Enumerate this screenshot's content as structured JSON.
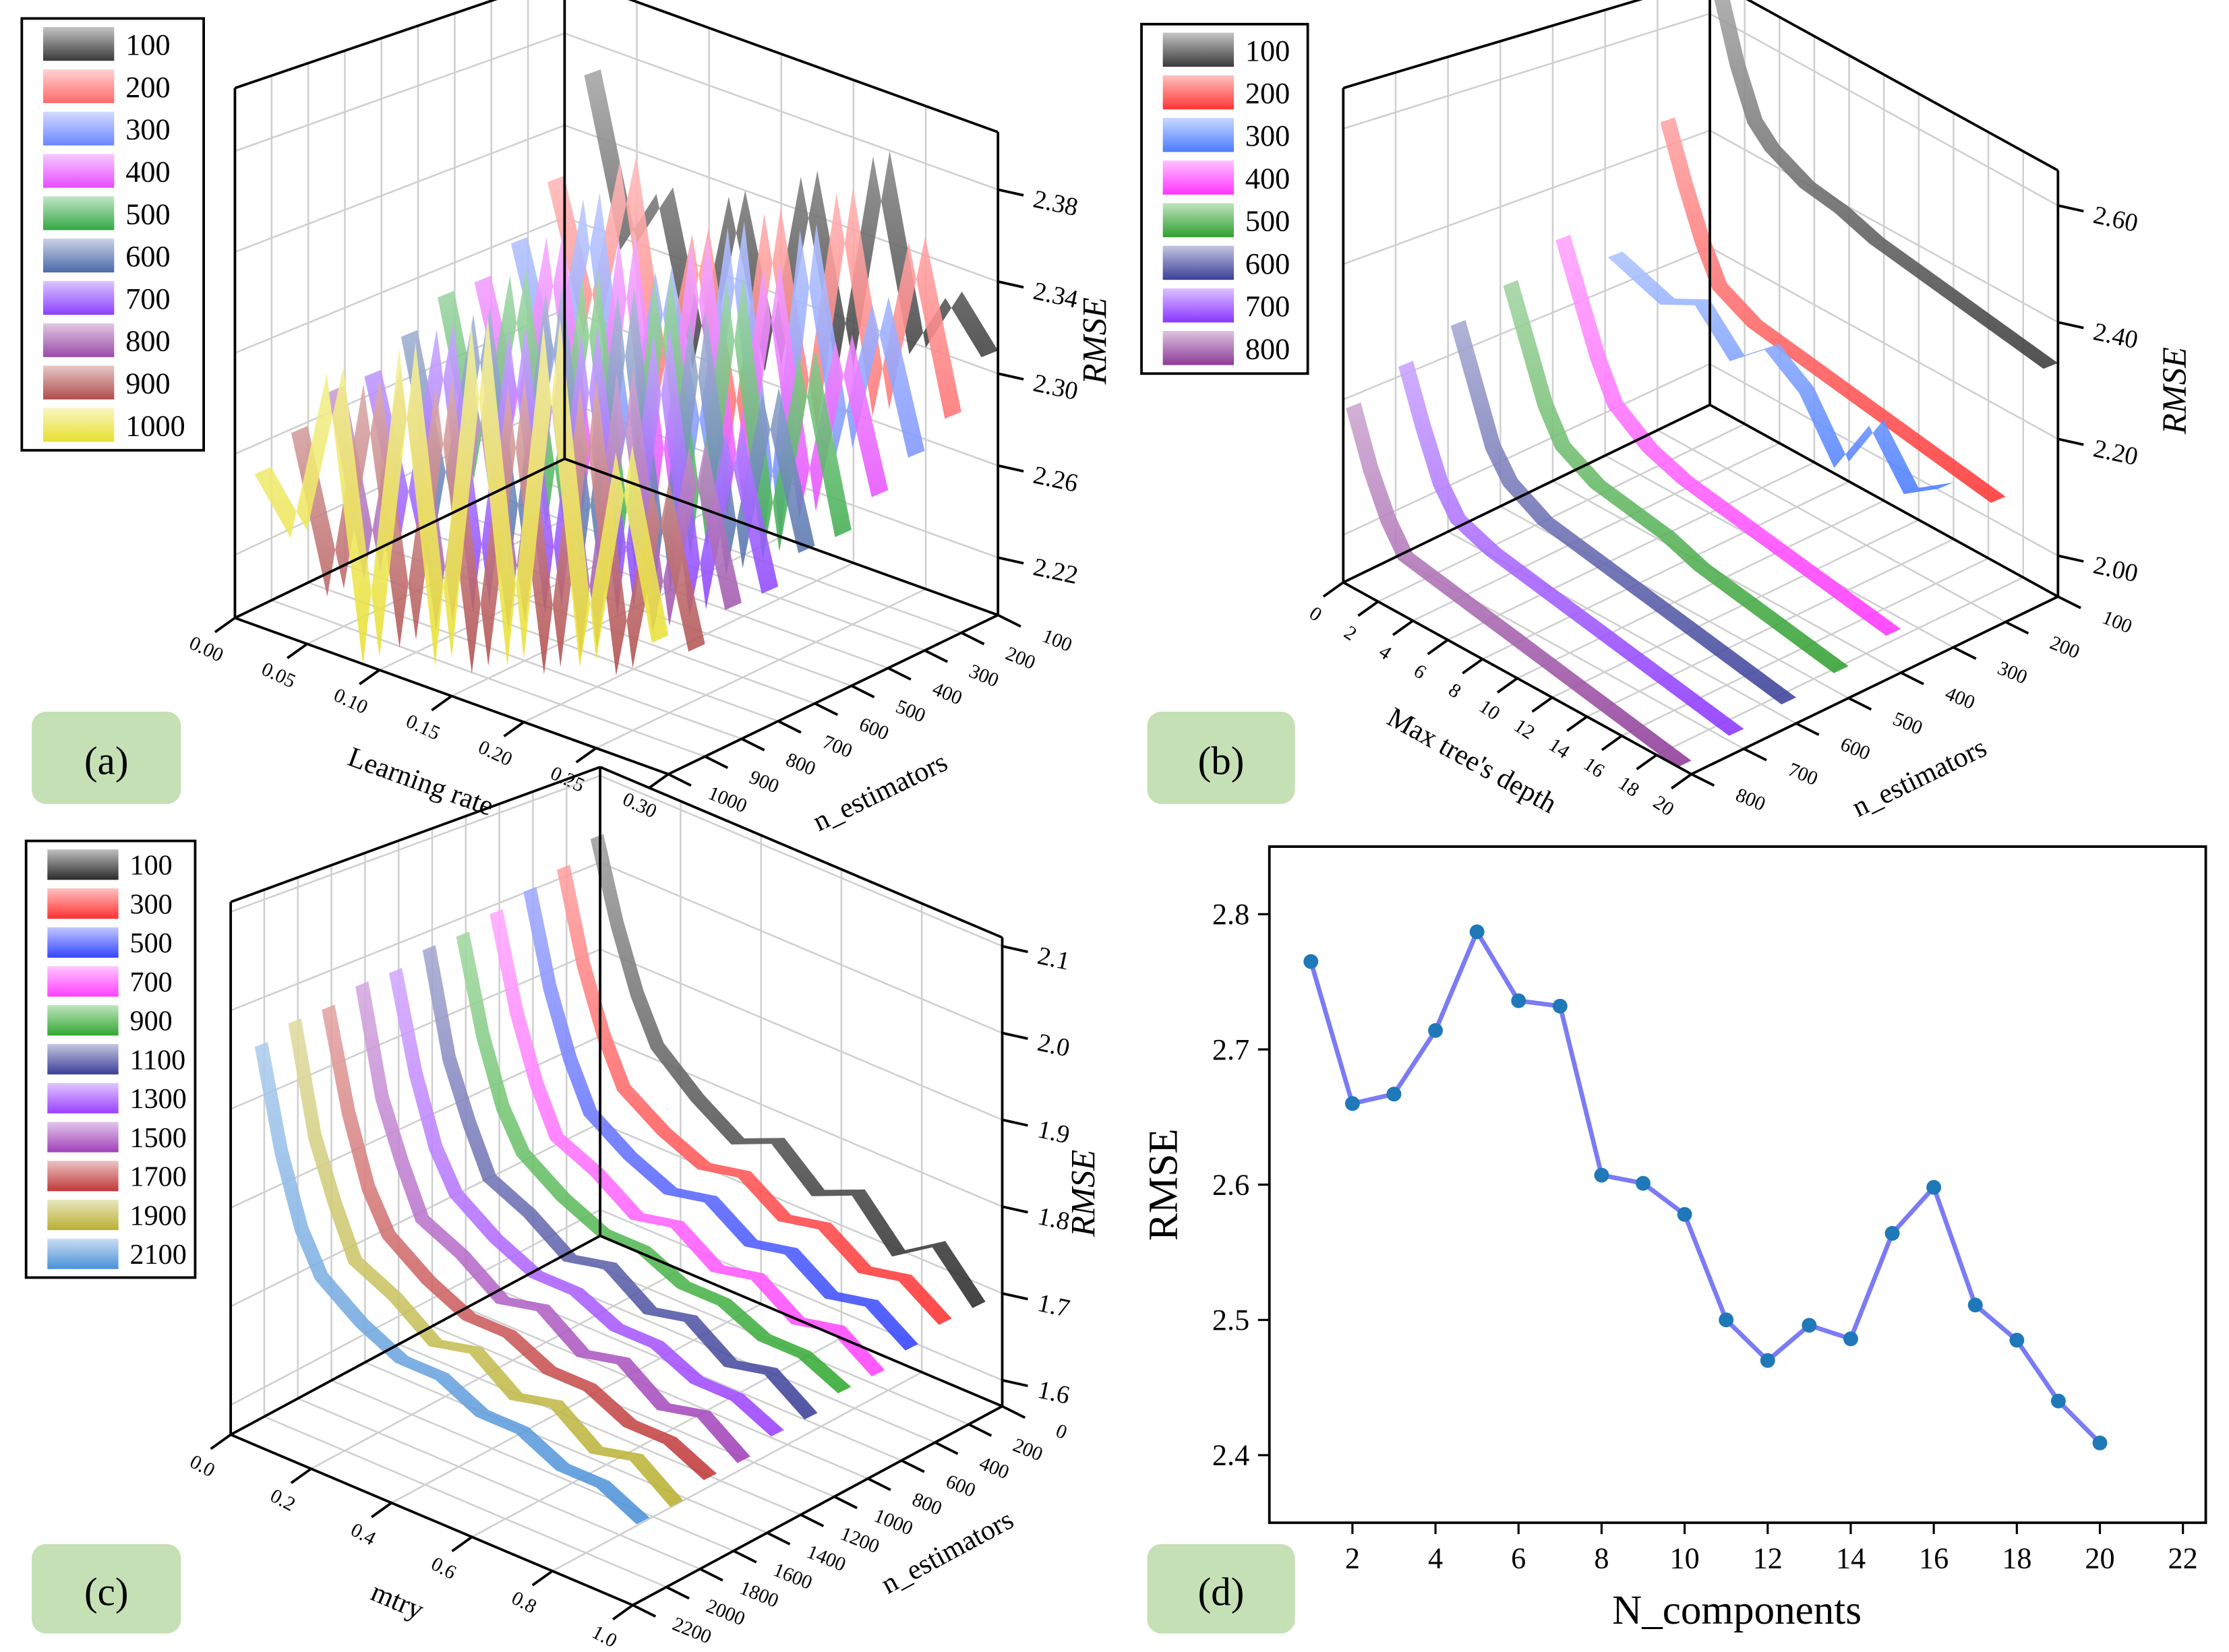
{
  "panel_labels": [
    "(a)",
    "(b)",
    "(c)",
    "(d)"
  ],
  "chart_data": [
    {
      "type": "3d-ribbon",
      "panel": "(a)",
      "xlabel": "Learning rate",
      "ylabel": "n_estimators",
      "zlabel": "RMSE",
      "x_range": [
        0,
        0.3
      ],
      "y_range": [
        1000,
        100
      ],
      "z_range": [
        2.195,
        2.405
      ],
      "x_ticks": [
        "0.00",
        "0.05",
        "0.10",
        "0.15",
        "0.20",
        "0.25",
        "0.30"
      ],
      "y_ticks": [
        "100",
        "200",
        "300",
        "400",
        "500",
        "600",
        "700",
        "800",
        "900",
        "1000"
      ],
      "z_ticks": [
        "2.22",
        "2.26",
        "2.30",
        "2.34",
        "2.38"
      ],
      "x": [
        0.025,
        0.05,
        0.075,
        0.1,
        0.125,
        0.15,
        0.175,
        0.2,
        0.225,
        0.25,
        0.275,
        0.3
      ],
      "legend": "top-left",
      "series": [
        {
          "name": "100",
          "n": 100,
          "color": "#3a3a3a",
          "values": [
            2.37,
            2.3,
            2.33,
            2.26,
            2.34,
            2.27,
            2.36,
            2.28,
            2.38,
            2.3,
            2.33,
            2.31
          ]
        },
        {
          "name": "200",
          "n": 200,
          "color": "#ff6a6a",
          "values": [
            2.33,
            2.27,
            2.35,
            2.25,
            2.33,
            2.24,
            2.35,
            2.26,
            2.37,
            2.28,
            2.36,
            2.29
          ]
        },
        {
          "name": "300",
          "n": 300,
          "color": "#6b86ff",
          "values": [
            2.31,
            2.25,
            2.34,
            2.23,
            2.32,
            2.24,
            2.35,
            2.22,
            2.36,
            2.27,
            2.34,
            2.28
          ]
        },
        {
          "name": "400",
          "n": 400,
          "color": "#e64cff",
          "values": [
            2.3,
            2.24,
            2.33,
            2.22,
            2.34,
            2.23,
            2.35,
            2.24,
            2.35,
            2.25,
            2.33,
            2.27
          ]
        },
        {
          "name": "500",
          "n": 500,
          "color": "#34a844",
          "values": [
            2.3,
            2.23,
            2.32,
            2.22,
            2.33,
            2.21,
            2.34,
            2.23,
            2.35,
            2.24,
            2.33,
            2.26
          ]
        },
        {
          "name": "600",
          "n": 600,
          "color": "#4a6aa8",
          "values": [
            2.29,
            2.22,
            2.31,
            2.21,
            2.33,
            2.22,
            2.34,
            2.22,
            2.34,
            2.24,
            2.32,
            2.26
          ]
        },
        {
          "name": "700",
          "n": 700,
          "color": "#8a40ff",
          "values": [
            2.28,
            2.22,
            2.31,
            2.2,
            2.32,
            2.21,
            2.33,
            2.22,
            2.34,
            2.23,
            2.31,
            2.25
          ]
        },
        {
          "name": "800",
          "n": 800,
          "color": "#9a4aa8",
          "values": [
            2.28,
            2.21,
            2.3,
            2.2,
            2.31,
            2.21,
            2.33,
            2.21,
            2.33,
            2.23,
            2.31,
            2.25
          ]
        },
        {
          "name": "900",
          "n": 900,
          "color": "#b04c4c",
          "values": [
            2.27,
            2.21,
            2.3,
            2.2,
            2.31,
            2.2,
            2.32,
            2.21,
            2.33,
            2.22,
            2.3,
            2.24
          ]
        },
        {
          "name": "1000",
          "n": 1000,
          "color": "#e8e030",
          "values": [
            2.26,
            2.24,
            2.31,
            2.2,
            2.33,
            2.21,
            2.35,
            2.22,
            2.36,
            2.23,
            2.32,
            2.25
          ]
        }
      ]
    },
    {
      "type": "3d-ribbon",
      "panel": "(b)",
      "xlabel": "Max tree's depth",
      "ylabel": "n_estimators",
      "zlabel": "RMSE",
      "x_range": [
        0,
        20
      ],
      "y_range": [
        800,
        100
      ],
      "z_range": [
        1.93,
        2.66
      ],
      "x_ticks": [
        "0",
        "2",
        "4",
        "6",
        "8",
        "10",
        "12",
        "14",
        "16",
        "18",
        "20"
      ],
      "y_ticks": [
        "100",
        "200",
        "300",
        "400",
        "500",
        "600",
        "700",
        "800"
      ],
      "z_ticks": [
        "2.00",
        "2.20",
        "2.40",
        "2.60"
      ],
      "x": [
        1,
        2,
        3,
        4,
        6,
        8,
        10,
        12,
        14,
        16,
        18,
        20
      ],
      "legend": "top-left",
      "series": [
        {
          "name": "100",
          "n": 100,
          "color": "#3a3a3a",
          "values": [
            2.66,
            2.55,
            2.47,
            2.44,
            2.41,
            2.4,
            2.38,
            2.37,
            2.36,
            2.35,
            2.34,
            2.33
          ]
        },
        {
          "name": "200",
          "n": 200,
          "color": "#ff3434",
          "values": [
            2.47,
            2.38,
            2.3,
            2.24,
            2.21,
            2.2,
            2.19,
            2.18,
            2.17,
            2.16,
            2.15,
            2.14
          ]
        },
        {
          "name": "300",
          "n": 300,
          "color": "#4a7cff",
          "values": [
            2.28,
            2.27,
            2.26,
            2.25,
            2.28,
            2.22,
            2.27,
            2.23,
            2.14,
            2.24,
            2.16,
            2.2
          ]
        },
        {
          "name": "400",
          "n": 400,
          "color": "#ff34ff",
          "values": [
            2.34,
            2.26,
            2.18,
            2.12,
            2.08,
            2.06,
            2.05,
            2.04,
            2.03,
            2.02,
            2.01,
            2.0
          ]
        },
        {
          "name": "500",
          "n": 500,
          "color": "#30a030",
          "values": [
            2.3,
            2.22,
            2.14,
            2.09,
            2.06,
            2.05,
            2.04,
            2.02,
            2.01,
            2.0,
            1.99,
            1.98
          ]
        },
        {
          "name": "600",
          "n": 600,
          "color": "#3a3f98",
          "values": [
            2.27,
            2.19,
            2.11,
            2.07,
            2.04,
            2.03,
            2.02,
            2.01,
            2.0,
            1.99,
            1.98,
            1.97
          ]
        },
        {
          "name": "700",
          "n": 700,
          "color": "#8a34ff",
          "values": [
            2.24,
            2.16,
            2.09,
            2.05,
            2.03,
            2.02,
            2.01,
            2.0,
            1.99,
            1.98,
            1.97,
            1.96
          ]
        },
        {
          "name": "800",
          "n": 800,
          "color": "#8e3a98",
          "values": [
            2.21,
            2.13,
            2.07,
            2.03,
            2.02,
            2.01,
            2.0,
            1.99,
            1.98,
            1.97,
            1.96,
            1.95
          ]
        }
      ]
    },
    {
      "type": "3d-ribbon",
      "panel": "(c)",
      "xlabel": "mtry",
      "ylabel": "n_estimators",
      "zlabel": "RMSE",
      "x_range": [
        0,
        1.0
      ],
      "y_range": [
        2200,
        0
      ],
      "z_range": [
        1.57,
        2.11
      ],
      "x_ticks": [
        "0.0",
        "0.2",
        "0.4",
        "0.6",
        "0.8",
        "1.0"
      ],
      "y_ticks": [
        "0",
        "200",
        "400",
        "600",
        "800",
        "1000",
        "1200",
        "1400",
        "1600",
        "1800",
        "2000",
        "2200"
      ],
      "z_ticks": [
        "1.6",
        "1.7",
        "1.8",
        "1.9",
        "2.0",
        "2.1"
      ],
      "x": [
        0.05,
        0.1,
        0.15,
        0.2,
        0.3,
        0.4,
        0.5,
        0.6,
        0.7,
        0.8,
        0.9,
        1.0
      ],
      "legend": "top-left",
      "series": [
        {
          "name": "100",
          "n": 100,
          "color": "#2a2a2a",
          "values": [
            2.05,
            1.96,
            1.89,
            1.84,
            1.8,
            1.77,
            1.79,
            1.75,
            1.77,
            1.72,
            1.75,
            1.7
          ]
        },
        {
          "name": "300",
          "n": 300,
          "color": "#ff3030",
          "values": [
            2.03,
            1.93,
            1.86,
            1.81,
            1.78,
            1.76,
            1.77,
            1.74,
            1.75,
            1.72,
            1.73,
            1.7
          ]
        },
        {
          "name": "500",
          "n": 500,
          "color": "#3344ff",
          "values": [
            2.02,
            1.92,
            1.85,
            1.8,
            1.77,
            1.75,
            1.76,
            1.73,
            1.74,
            1.71,
            1.72,
            1.69
          ]
        },
        {
          "name": "700",
          "n": 700,
          "color": "#ff40ff",
          "values": [
            2.01,
            1.91,
            1.84,
            1.79,
            1.77,
            1.74,
            1.75,
            1.72,
            1.73,
            1.7,
            1.71,
            1.68
          ]
        },
        {
          "name": "900",
          "n": 900,
          "color": "#30a830",
          "values": [
            2.0,
            1.9,
            1.83,
            1.79,
            1.76,
            1.74,
            1.74,
            1.72,
            1.72,
            1.7,
            1.7,
            1.68
          ]
        },
        {
          "name": "1100",
          "n": 1100,
          "color": "#3a3f98",
          "values": [
            2.0,
            1.89,
            1.83,
            1.78,
            1.76,
            1.73,
            1.74,
            1.71,
            1.72,
            1.69,
            1.7,
            1.67
          ]
        },
        {
          "name": "1300",
          "n": 1300,
          "color": "#9a40ff",
          "values": [
            1.99,
            1.89,
            1.82,
            1.78,
            1.75,
            1.73,
            1.73,
            1.71,
            1.71,
            1.69,
            1.69,
            1.67
          ]
        },
        {
          "name": "1500",
          "n": 1500,
          "color": "#a040b8",
          "values": [
            1.99,
            1.88,
            1.82,
            1.77,
            1.75,
            1.72,
            1.73,
            1.7,
            1.71,
            1.68,
            1.69,
            1.66
          ]
        },
        {
          "name": "1700",
          "n": 1700,
          "color": "#c03838",
          "values": [
            1.98,
            1.88,
            1.81,
            1.77,
            1.74,
            1.72,
            1.72,
            1.7,
            1.7,
            1.68,
            1.68,
            1.66
          ]
        },
        {
          "name": "1900",
          "n": 1900,
          "color": "#b8b030",
          "values": [
            1.98,
            1.87,
            1.81,
            1.76,
            1.74,
            1.71,
            1.72,
            1.69,
            1.7,
            1.67,
            1.68,
            1.65
          ]
        },
        {
          "name": "2100",
          "n": 2100,
          "color": "#4a90d8",
          "values": [
            1.97,
            1.87,
            1.8,
            1.76,
            1.73,
            1.71,
            1.71,
            1.69,
            1.69,
            1.67,
            1.67,
            1.65
          ]
        }
      ]
    },
    {
      "type": "line",
      "panel": "(d)",
      "xlabel": "N_components",
      "ylabel": "RMSE",
      "xlim": [
        0,
        22.55
      ],
      "ylim": [
        2.35,
        2.85
      ],
      "x_ticks": [
        "2",
        "4",
        "6",
        "8",
        "10",
        "12",
        "14",
        "16",
        "18",
        "20",
        "22"
      ],
      "y_ticks": [
        "2.4",
        "2.5",
        "2.6",
        "2.7",
        "2.8"
      ],
      "line_color": "#7b7bf5",
      "marker_color": "#1f78b8",
      "x": [
        1,
        2,
        3,
        4,
        5,
        6,
        7,
        8,
        9,
        10,
        11,
        12,
        13,
        14,
        15,
        16,
        17,
        18,
        19,
        20
      ],
      "values": [
        2.765,
        2.66,
        2.667,
        2.714,
        2.787,
        2.736,
        2.732,
        2.607,
        2.601,
        2.578,
        2.5,
        2.47,
        2.496,
        2.486,
        2.564,
        2.598,
        2.511,
        2.485,
        2.44,
        2.409
      ]
    }
  ]
}
